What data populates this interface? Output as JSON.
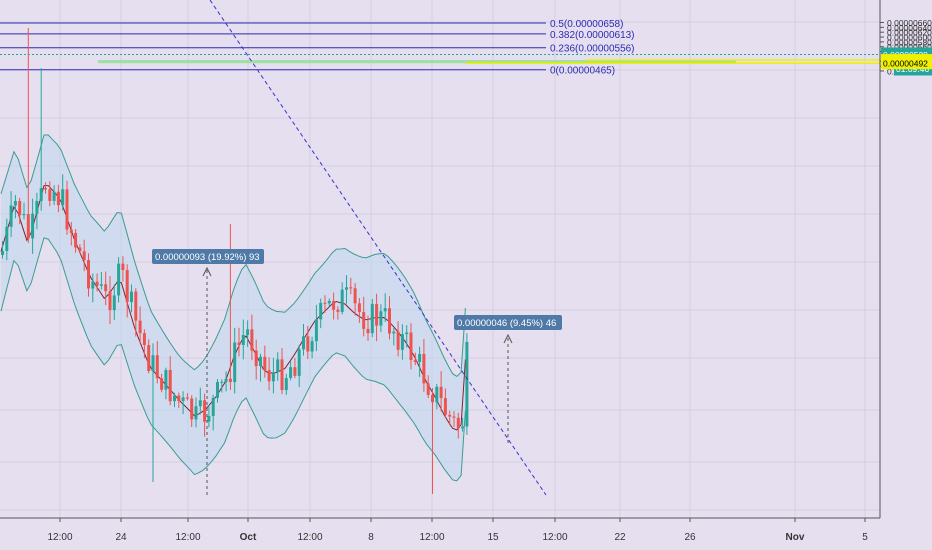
{
  "price_scale": {
    "ticks": [
      {
        "label": "0.00000660",
        "value": 6.6e-06
      },
      {
        "label": "0.00000640",
        "value": 6.4e-06
      },
      {
        "label": "0.00000620",
        "value": 6.2e-06
      },
      {
        "label": "0.00000600",
        "value": 6e-06
      },
      {
        "label": "0.00000580",
        "value": 5.8e-06
      },
      {
        "label": "0.00000560",
        "value": 5.6e-06
      },
      {
        "label": "0.00000540",
        "value": 5.4e-06
      },
      {
        "label": "0.00000500",
        "value": 5e-06
      },
      {
        "label": "0.00000480",
        "value": 4.8e-06
      },
      {
        "label": "0.00000460",
        "value": 4.6e-06
      }
    ],
    "last_price_label": "0.00000528",
    "countdown_label": "01:09:46",
    "zone_top_label": "0.00000505",
    "zone_bottom_label": "0.00000492",
    "partial_label": "0.0"
  },
  "time_scale": {
    "ticks": [
      "12:00",
      "24",
      "12:00",
      "Oct",
      "12:00",
      "8",
      "12:00",
      "15",
      "12:00",
      "22",
      "26",
      "Nov",
      "5"
    ]
  },
  "fibonacci": [
    {
      "label": "0.5(0.00000658)",
      "level": 0.5,
      "price": 6.58e-06
    },
    {
      "label": "0.382(0.00000613)",
      "level": 0.382,
      "price": 6.13e-06
    },
    {
      "label": "0.236(0.00000556)",
      "level": 0.236,
      "price": 5.56e-06
    },
    {
      "label": "0(0.00000465)",
      "level": 0,
      "price": 4.65e-06
    }
  ],
  "measurements": [
    {
      "label": "0.00000093 (19.92%) 93"
    },
    {
      "label": "0.00000046 (9.45%) 46"
    }
  ],
  "colors": {
    "background": "#e6dff0",
    "up_candle": "#26a69a",
    "down_candle": "#ef5350",
    "bollinger": "#3a9d8f",
    "moving_average": "#8b1e2d",
    "fib_line": "#2b2bb0",
    "zone_fill": "#8fe08f",
    "zone_line": "#f0f000",
    "trend_line": "#3535d0",
    "tag_fill": "#4f7aa8"
  },
  "chart_data": {
    "type": "candlestick",
    "price_range": [
      4.55e-06,
      6.66e-06
    ],
    "last_price": 5.28e-06,
    "support_zone": {
      "top": 5.05e-06,
      "bottom": 4.92e-06
    }
  }
}
